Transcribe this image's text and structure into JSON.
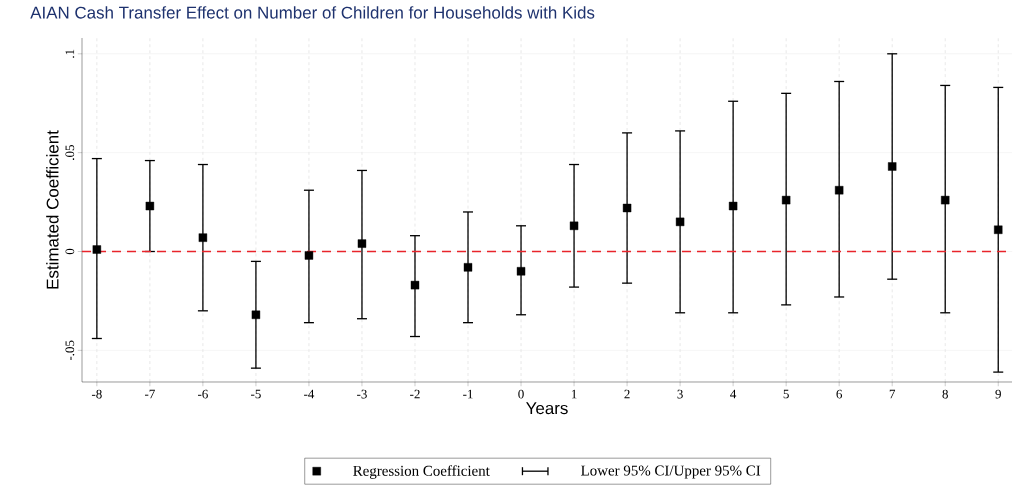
{
  "chart_data": {
    "type": "scatter",
    "title": "AIAN Cash Transfer Effect on Number of Children for Households with Kids",
    "xlabel": "Years",
    "ylabel": "Estimated Coefficient",
    "x": [
      -8,
      -7,
      -6,
      -5,
      -4,
      -3,
      -2,
      -1,
      0,
      1,
      2,
      3,
      4,
      5,
      6,
      7,
      8,
      9
    ],
    "series": [
      {
        "name": "Regression Coefficient",
        "color": "#000000",
        "marker": "square",
        "values": [
          0.001,
          0.023,
          0.007,
          -0.032,
          -0.002,
          0.004,
          -0.017,
          -0.008,
          -0.01,
          0.013,
          0.022,
          0.015,
          0.023,
          0.026,
          0.031,
          0.043,
          0.026,
          0.011
        ],
        "errors": [
          [
            -0.044,
            0.047
          ],
          [
            0.0,
            0.046
          ],
          [
            -0.03,
            0.044
          ],
          [
            -0.059,
            -0.005
          ],
          [
            -0.036,
            0.031
          ],
          [
            -0.034,
            0.041
          ],
          [
            -0.043,
            0.008
          ],
          [
            -0.036,
            0.02
          ],
          [
            -0.032,
            0.013
          ],
          [
            -0.018,
            0.044
          ],
          [
            -0.016,
            0.06
          ],
          [
            -0.031,
            0.061
          ],
          [
            -0.031,
            0.076
          ],
          [
            -0.027,
            0.08
          ],
          [
            -0.023,
            0.086
          ],
          [
            -0.014,
            0.1
          ],
          [
            -0.031,
            0.084
          ],
          [
            -0.061,
            0.083
          ]
        ]
      }
    ],
    "annotations": [
      "Lower 95% CI/Upper 95% CI"
    ],
    "xlim": [
      -8.28,
      9.26
    ],
    "ylim": [
      -0.066,
      0.108
    ],
    "xticks": [
      -8,
      -7,
      -6,
      -5,
      -4,
      -3,
      -2,
      -1,
      0,
      1,
      2,
      3,
      4,
      5,
      6,
      7,
      8,
      9
    ],
    "yticks": [
      {
        "value": -0.05,
        "label": "-.05"
      },
      {
        "value": 0,
        "label": "0"
      },
      {
        "value": 0.05,
        "label": ".05"
      },
      {
        "value": 0.1,
        "label": ".1"
      }
    ],
    "ref_lines": [
      {
        "axis": "y",
        "value": 0,
        "color": "#e8242b",
        "line_style": "dashed"
      }
    ],
    "grid": true,
    "legend": "bottom"
  }
}
